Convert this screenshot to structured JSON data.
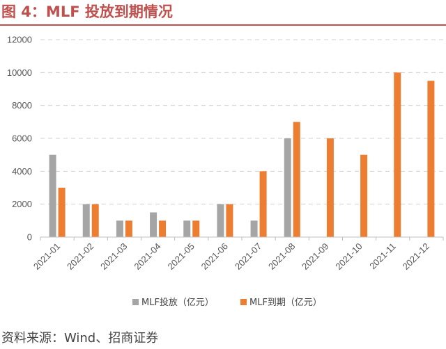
{
  "header": {
    "title": "图 4：MLF 投放到期情况"
  },
  "footer": {
    "source": "资料来源：Wind、招商证券"
  },
  "chart_data": {
    "type": "bar",
    "title": "",
    "xlabel": "",
    "ylabel": "",
    "categories": [
      "2021-01",
      "2021-02",
      "2021-03",
      "2021-04",
      "2021-05",
      "2021-06",
      "2021-07",
      "2021-08",
      "2021-09",
      "2021-10",
      "2021-11",
      "2021-12"
    ],
    "series": [
      {
        "name": "MLF投放（亿元）",
        "color": "#a5a5a5",
        "values": [
          5000,
          2000,
          1000,
          1500,
          1000,
          2000,
          1000,
          6000,
          0,
          0,
          0,
          0
        ]
      },
      {
        "name": "MLF到期（亿元）",
        "color": "#ed7d31",
        "values": [
          3000,
          2000,
          1000,
          1000,
          1000,
          2000,
          4000,
          7000,
          6000,
          5000,
          10000,
          9500
        ]
      }
    ],
    "ylim": [
      0,
      12000
    ],
    "yticks": [
      0,
      2000,
      4000,
      6000,
      8000,
      10000,
      12000
    ],
    "grid": true,
    "legend_position": "bottom"
  }
}
